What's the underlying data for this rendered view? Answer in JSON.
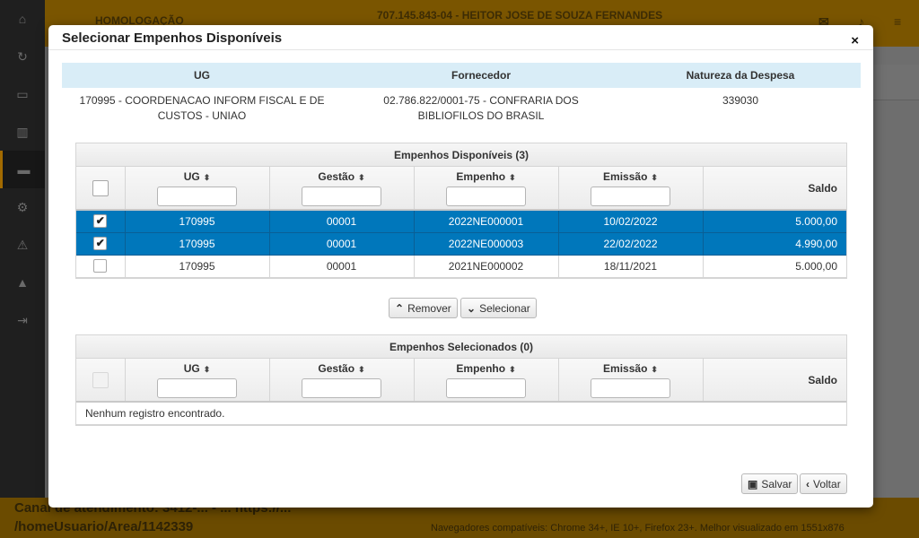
{
  "background": {
    "env": "HOMOLOGAÇÃO",
    "user": "707.145.843-04 - HEITOR JOSE DE SOUZA FERNANDES",
    "footer_line1": "Canal de atendimento: 3412-... - ... https://...",
    "footer_line2": "/homeUsuario/Area/1142339",
    "footer_line3": "Navegadores compatíveis: Chrome 34+, IE 10+, Firefox 23+. Melhor visualizado em 1551x876"
  },
  "modal": {
    "title": "Selecionar Empenhos Disponíveis",
    "close_icon": "×"
  },
  "info": {
    "headers": [
      "UG",
      "Fornecedor",
      "Natureza da Despesa"
    ],
    "ug": "170995 - COORDENACAO INFORM FISCAL E DE CUSTOS - UNIAO",
    "fornecedor": "02.786.822/0001-75 - CONFRARIA DOS BIBLIOFILOS DO BRASIL",
    "natureza": "339030"
  },
  "disponiveis": {
    "caption": "Empenhos Disponíveis (3)",
    "columns": [
      "UG",
      "Gestão",
      "Empenho",
      "Emissão",
      "Saldo"
    ],
    "rows": [
      {
        "ug": "170995",
        "gestao": "00001",
        "empenho": "2022NE000001",
        "emissao": "10/02/2022",
        "saldo": "5.000,00",
        "selected": true
      },
      {
        "ug": "170995",
        "gestao": "00001",
        "empenho": "2022NE000003",
        "emissao": "22/02/2022",
        "saldo": "4.990,00",
        "selected": true
      },
      {
        "ug": "170995",
        "gestao": "00001",
        "empenho": "2021NE000002",
        "emissao": "18/11/2021",
        "saldo": "5.000,00",
        "selected": false
      }
    ]
  },
  "buttons": {
    "remover": "Remover",
    "selecionar": "Selecionar",
    "salvar": "Salvar",
    "voltar": "Voltar"
  },
  "selecionados": {
    "caption": "Empenhos Selecionados (0)",
    "columns": [
      "UG",
      "Gestão",
      "Empenho",
      "Emissão",
      "Saldo"
    ],
    "empty_message": "Nenhum registro encontrado."
  },
  "icons": {
    "check": "check-icon",
    "sort": "sort-icon",
    "close": "close-icon",
    "chevron_up": "chevron-up-icon",
    "chevron_down": "chevron-down-icon",
    "chevron_left": "chevron-left-icon",
    "save": "floppy-disk-icon"
  },
  "colors": {
    "selected_row": "#0077bb",
    "info_header": "#d9edf7",
    "topbar": "#7a5500"
  }
}
